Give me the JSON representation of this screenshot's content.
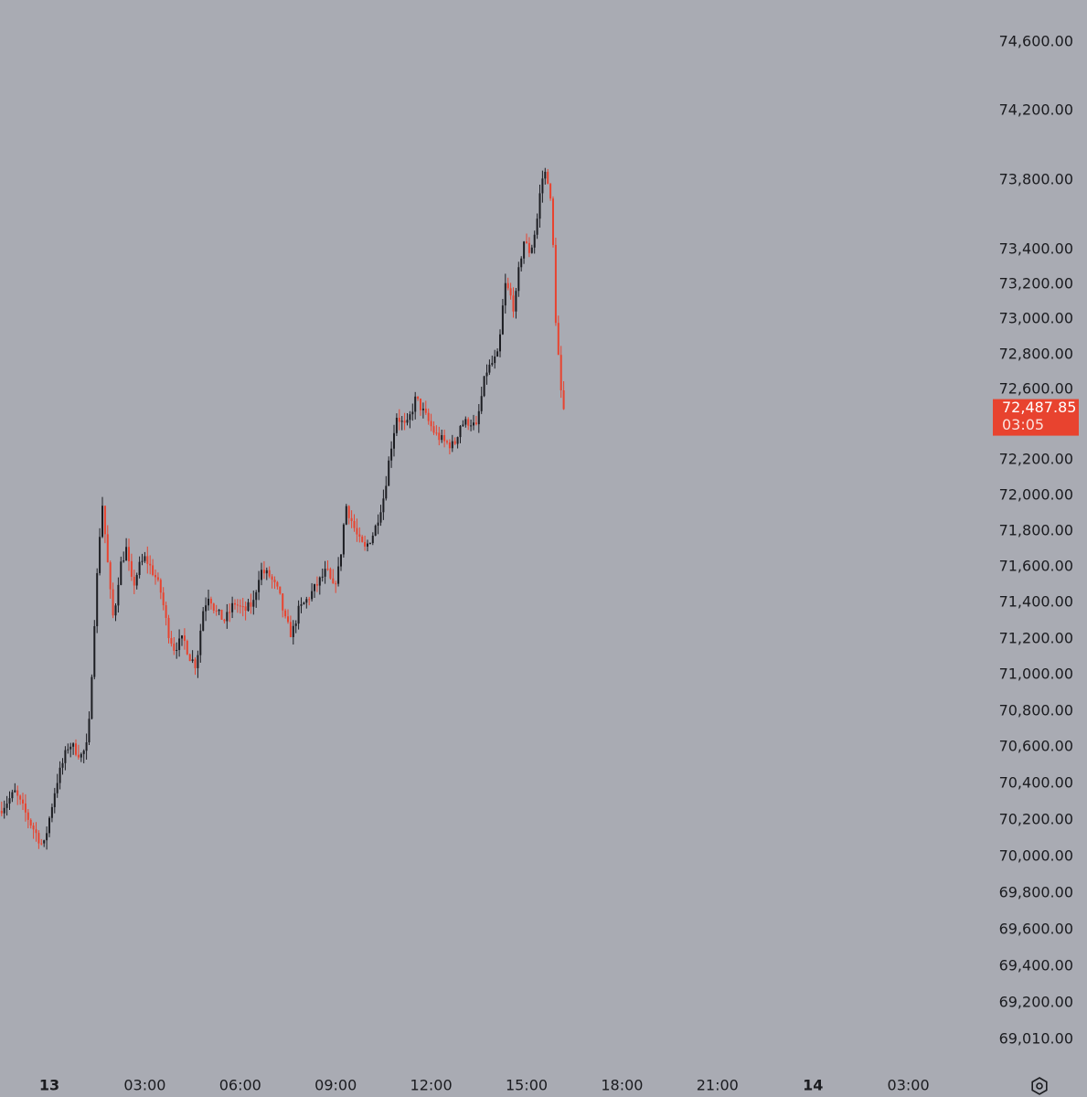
{
  "colors": {
    "background": "#a9abb3",
    "up": "#1c1d22",
    "down": "#e8432f",
    "text": "#1a1b1f",
    "price_tag": "#e8432f"
  },
  "settings_icon": "hexagon-settings-icon",
  "chart_data": {
    "type": "candlestick",
    "title": "",
    "xlabel": "",
    "ylabel": "",
    "ylim": [
      68900,
      74800
    ],
    "y_ticks": [
      {
        "value": 74600,
        "label": "74,600.00"
      },
      {
        "value": 74200,
        "label": "74,200.00"
      },
      {
        "value": 73800,
        "label": "73,800.00"
      },
      {
        "value": 73400,
        "label": "73,400.00"
      },
      {
        "value": 73200,
        "label": "73,200.00"
      },
      {
        "value": 73000,
        "label": "73,000.00"
      },
      {
        "value": 72800,
        "label": "72,800.00"
      },
      {
        "value": 72600,
        "label": "72,600.00"
      },
      {
        "value": 72200,
        "label": "72,200.00"
      },
      {
        "value": 72000,
        "label": "72,000.00"
      },
      {
        "value": 71800,
        "label": "71,800.00"
      },
      {
        "value": 71600,
        "label": "71,600.00"
      },
      {
        "value": 71400,
        "label": "71,400.00"
      },
      {
        "value": 71200,
        "label": "71,200.00"
      },
      {
        "value": 71000,
        "label": "71,000.00"
      },
      {
        "value": 70800,
        "label": "70,800.00"
      },
      {
        "value": 70600,
        "label": "70,600.00"
      },
      {
        "value": 70400,
        "label": "70,400.00"
      },
      {
        "value": 70200,
        "label": "70,200.00"
      },
      {
        "value": 70000,
        "label": "70,000.00"
      },
      {
        "value": 69800,
        "label": "69,800.00"
      },
      {
        "value": 69600,
        "label": "69,600.00"
      },
      {
        "value": 69400,
        "label": "69,400.00"
      },
      {
        "value": 69200,
        "label": "69,200.00"
      },
      {
        "value": 69010,
        "label": "69,010.00"
      }
    ],
    "x_range_hours": [
      -1.5,
      32.5
    ],
    "x_ticks": [
      {
        "hour": 0,
        "label": "13",
        "bold": true
      },
      {
        "hour": 3,
        "label": "03:00",
        "bold": false
      },
      {
        "hour": 6,
        "label": "06:00",
        "bold": false
      },
      {
        "hour": 9,
        "label": "09:00",
        "bold": false
      },
      {
        "hour": 12,
        "label": "12:00",
        "bold": false
      },
      {
        "hour": 15,
        "label": "15:00",
        "bold": false
      },
      {
        "hour": 18,
        "label": "18:00",
        "bold": false
      },
      {
        "hour": 21,
        "label": "21:00",
        "bold": false
      },
      {
        "hour": 24,
        "label": "14",
        "bold": true
      },
      {
        "hour": 27,
        "label": "03:00",
        "bold": false
      }
    ],
    "current_price": {
      "value": 72487.85,
      "label": "72,487.85",
      "countdown": "03:05"
    },
    "keypoints": [
      {
        "h": -1.5,
        "p": 70250
      },
      {
        "h": -1.0,
        "p": 70350
      },
      {
        "h": -0.5,
        "p": 70180
      },
      {
        "h": -0.1,
        "p": 70050
      },
      {
        "h": 0.3,
        "p": 70400
      },
      {
        "h": 0.7,
        "p": 70620
      },
      {
        "h": 1.1,
        "p": 70550
      },
      {
        "h": 1.3,
        "p": 70620
      },
      {
        "h": 1.5,
        "p": 71300
      },
      {
        "h": 1.65,
        "p": 71750
      },
      {
        "h": 1.75,
        "p": 71950
      },
      {
        "h": 2.0,
        "p": 71450
      },
      {
        "h": 2.1,
        "p": 71300
      },
      {
        "h": 2.3,
        "p": 71600
      },
      {
        "h": 2.5,
        "p": 71700
      },
      {
        "h": 2.7,
        "p": 71480
      },
      {
        "h": 2.9,
        "p": 71600
      },
      {
        "h": 3.1,
        "p": 71650
      },
      {
        "h": 3.4,
        "p": 71550
      },
      {
        "h": 3.6,
        "p": 71450
      },
      {
        "h": 3.8,
        "p": 71250
      },
      {
        "h": 4.0,
        "p": 71150
      },
      {
        "h": 4.3,
        "p": 71200
      },
      {
        "h": 4.5,
        "p": 71100
      },
      {
        "h": 4.7,
        "p": 71050
      },
      {
        "h": 4.9,
        "p": 71350
      },
      {
        "h": 5.1,
        "p": 71450
      },
      {
        "h": 5.3,
        "p": 71350
      },
      {
        "h": 5.6,
        "p": 71300
      },
      {
        "h": 5.9,
        "p": 71400
      },
      {
        "h": 6.2,
        "p": 71350
      },
      {
        "h": 6.5,
        "p": 71400
      },
      {
        "h": 6.7,
        "p": 71580
      },
      {
        "h": 7.0,
        "p": 71550
      },
      {
        "h": 7.3,
        "p": 71450
      },
      {
        "h": 7.5,
        "p": 71300
      },
      {
        "h": 7.7,
        "p": 71220
      },
      {
        "h": 7.9,
        "p": 71350
      },
      {
        "h": 8.2,
        "p": 71420
      },
      {
        "h": 8.5,
        "p": 71500
      },
      {
        "h": 8.8,
        "p": 71580
      },
      {
        "h": 9.0,
        "p": 71480
      },
      {
        "h": 9.2,
        "p": 71600
      },
      {
        "h": 9.4,
        "p": 71950
      },
      {
        "h": 9.6,
        "p": 71850
      },
      {
        "h": 9.8,
        "p": 71750
      },
      {
        "h": 10.0,
        "p": 71700
      },
      {
        "h": 10.3,
        "p": 71800
      },
      {
        "h": 10.6,
        "p": 72000
      },
      {
        "h": 10.8,
        "p": 72250
      },
      {
        "h": 11.0,
        "p": 72450
      },
      {
        "h": 11.3,
        "p": 72380
      },
      {
        "h": 11.6,
        "p": 72550
      },
      {
        "h": 11.9,
        "p": 72450
      },
      {
        "h": 12.2,
        "p": 72350
      },
      {
        "h": 12.5,
        "p": 72300
      },
      {
        "h": 12.8,
        "p": 72280
      },
      {
        "h": 13.0,
        "p": 72400
      },
      {
        "h": 13.3,
        "p": 72420
      },
      {
        "h": 13.5,
        "p": 72380
      },
      {
        "h": 13.8,
        "p": 72700
      },
      {
        "h": 14.0,
        "p": 72750
      },
      {
        "h": 14.2,
        "p": 72800
      },
      {
        "h": 14.4,
        "p": 73200
      },
      {
        "h": 14.55,
        "p": 73150
      },
      {
        "h": 14.7,
        "p": 73050
      },
      {
        "h": 14.85,
        "p": 73300
      },
      {
        "h": 15.0,
        "p": 73450
      },
      {
        "h": 15.2,
        "p": 73380
      },
      {
        "h": 15.4,
        "p": 73550
      },
      {
        "h": 15.55,
        "p": 73800
      },
      {
        "h": 15.7,
        "p": 73850
      },
      {
        "h": 15.8,
        "p": 73760
      },
      {
        "h": 15.9,
        "p": 73500
      },
      {
        "h": 16.0,
        "p": 73000
      },
      {
        "h": 16.1,
        "p": 72750
      },
      {
        "h": 16.2,
        "p": 72488
      }
    ]
  }
}
